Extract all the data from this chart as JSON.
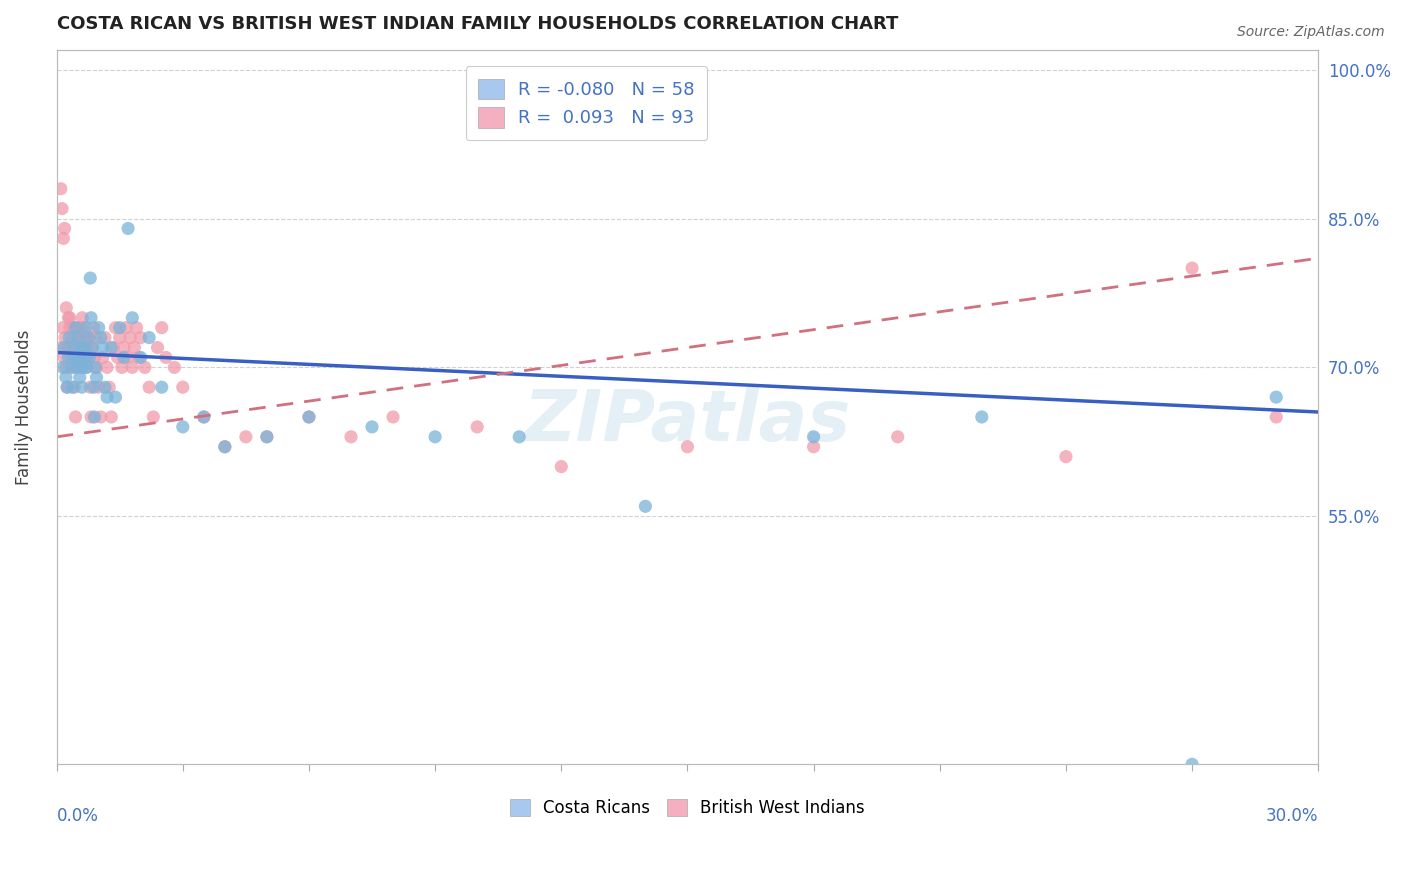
{
  "title": "COSTA RICAN VS BRITISH WEST INDIAN FAMILY HOUSEHOLDS CORRELATION CHART",
  "source": "Source: ZipAtlas.com",
  "ylabel": "Family Households",
  "right_ytick_values": [
    55.0,
    70.0,
    85.0,
    100.0
  ],
  "xmin": 0.0,
  "xmax": 30.0,
  "ymin": 30.0,
  "ymax": 102.0,
  "costa_rican_color": "#7ab3d9",
  "british_wi_color": "#f09aaa",
  "costa_rican_line_color": "#3a5fc4",
  "british_wi_line_color": "#d07080",
  "watermark": "ZIPatlas",
  "background_color": "#ffffff",
  "grid_color": "#cccccc",
  "legend_blue_color": "#a8c8f0",
  "legend_pink_color": "#f4b0c0",
  "legend_label1": "R = -0.080",
  "legend_n1": "N = 58",
  "legend_label2": "R =  0.093",
  "legend_n2": "N = 93",
  "cr_trend_x0": 0.0,
  "cr_trend_y0": 71.5,
  "cr_trend_x1": 30.0,
  "cr_trend_y1": 65.5,
  "bwi_trend_x0": 0.0,
  "bwi_trend_y0": 63.0,
  "bwi_trend_x1": 30.0,
  "bwi_trend_y1": 81.0,
  "cr_x": [
    0.15,
    0.18,
    0.22,
    0.25,
    0.28,
    0.3,
    0.35,
    0.38,
    0.4,
    0.42,
    0.45,
    0.48,
    0.5,
    0.52,
    0.55,
    0.58,
    0.6,
    0.62,
    0.65,
    0.68,
    0.7,
    0.72,
    0.75,
    0.78,
    0.8,
    0.82,
    0.85,
    0.88,
    0.9,
    0.92,
    0.95,
    1.0,
    1.05,
    1.1,
    1.15,
    1.2,
    1.3,
    1.4,
    1.5,
    1.6,
    1.7,
    1.8,
    2.0,
    2.2,
    2.5,
    3.0,
    3.5,
    4.0,
    5.0,
    6.0,
    7.5,
    9.0,
    11.0,
    14.0,
    18.0,
    22.0,
    27.0,
    29.0
  ],
  "cr_y": [
    70,
    72,
    69,
    68,
    71,
    73,
    70,
    68,
    72,
    71,
    74,
    70,
    73,
    71,
    69,
    72,
    68,
    70,
    72,
    71,
    74,
    70,
    73,
    71,
    79,
    75,
    72,
    68,
    65,
    70,
    69,
    74,
    73,
    72,
    68,
    67,
    72,
    67,
    74,
    71,
    84,
    75,
    71,
    73,
    68,
    64,
    65,
    62,
    63,
    65,
    64,
    63,
    63,
    56,
    63,
    65,
    30,
    67
  ],
  "bwi_x": [
    0.12,
    0.15,
    0.18,
    0.2,
    0.22,
    0.25,
    0.28,
    0.3,
    0.32,
    0.35,
    0.38,
    0.4,
    0.42,
    0.45,
    0.48,
    0.5,
    0.52,
    0.55,
    0.58,
    0.6,
    0.62,
    0.65,
    0.68,
    0.7,
    0.72,
    0.75,
    0.78,
    0.8,
    0.82,
    0.85,
    0.88,
    0.9,
    0.92,
    0.95,
    1.0,
    1.05,
    1.1,
    1.15,
    1.2,
    1.25,
    1.3,
    1.35,
    1.4,
    1.45,
    1.5,
    1.55,
    1.6,
    1.65,
    1.7,
    1.75,
    1.8,
    1.85,
    1.9,
    1.95,
    2.0,
    2.1,
    2.2,
    2.3,
    2.4,
    2.5,
    2.6,
    2.8,
    3.0,
    3.5,
    4.0,
    4.5,
    5.0,
    6.0,
    7.0,
    8.0,
    10.0,
    12.0,
    15.0,
    18.0,
    20.0,
    24.0,
    27.0,
    29.0,
    0.1,
    0.13,
    0.16,
    0.19,
    0.23,
    0.27,
    0.31,
    0.36,
    0.41,
    0.46,
    0.51,
    0.56,
    0.61,
    0.66,
    0.71
  ],
  "bwi_y": [
    72,
    74,
    71,
    73,
    70,
    68,
    75,
    72,
    74,
    71,
    73,
    70,
    68,
    65,
    72,
    74,
    71,
    73,
    70,
    72,
    74,
    71,
    73,
    70,
    72,
    71,
    73,
    68,
    65,
    72,
    74,
    71,
    73,
    70,
    68,
    65,
    71,
    73,
    70,
    68,
    65,
    72,
    74,
    71,
    73,
    70,
    72,
    74,
    71,
    73,
    70,
    72,
    74,
    71,
    73,
    70,
    68,
    65,
    72,
    74,
    71,
    70,
    68,
    65,
    62,
    63,
    63,
    65,
    63,
    65,
    64,
    60,
    62,
    62,
    63,
    61,
    80,
    65,
    88,
    86,
    83,
    84,
    76,
    72,
    75,
    72,
    74,
    72,
    73,
    74,
    75,
    73,
    72
  ]
}
